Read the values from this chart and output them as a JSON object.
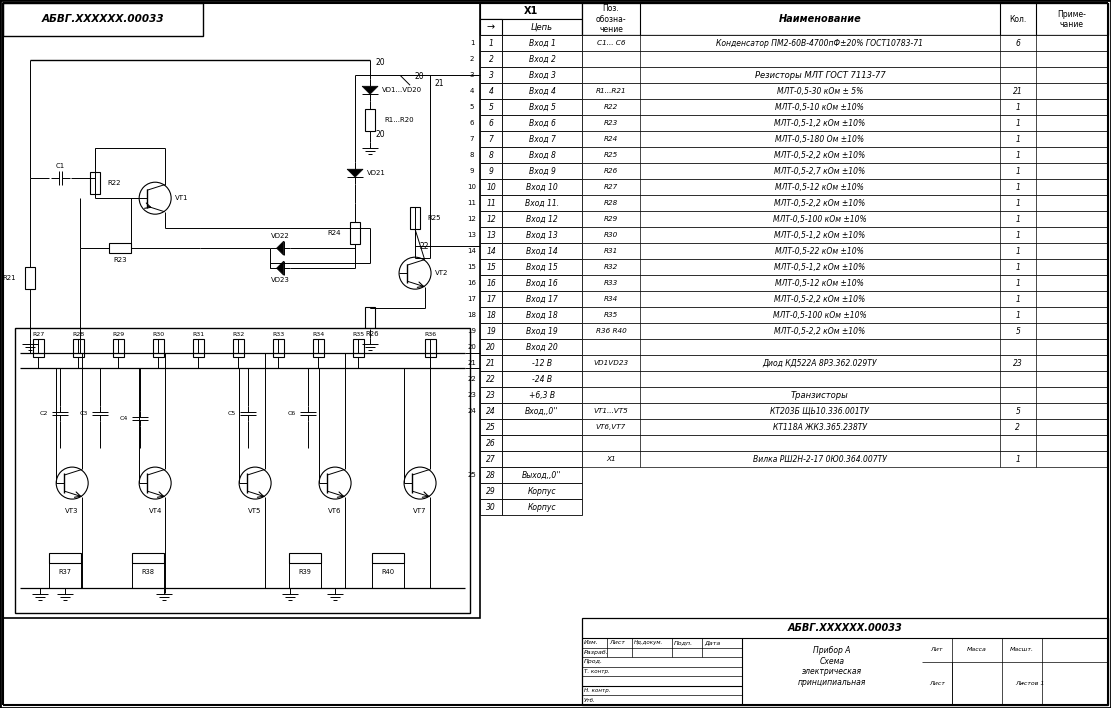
{
  "bg_color": "#ffffff",
  "fig_width": 11.11,
  "fig_height": 7.08,
  "title_stamp": "АБВГ.XXXXXX.00033",
  "bom_rows": [
    [
      "C1... C6",
      "Конденсатор ПМ2-60В-4700пФ±20% ГОСТ10783-71",
      "6"
    ],
    [
      "",
      "",
      ""
    ],
    [
      "",
      "Резисторы МЛТ ГОСТ 7113-77",
      ""
    ],
    [
      "R1...R21",
      "МЛТ-0,5-30 кОм ± 5%",
      "21"
    ],
    [
      "R22",
      "МЛТ-0,5-10 кОм ±10%",
      "1"
    ],
    [
      "R23",
      "МЛТ-0,5-1,2 кОм ±10%",
      "1"
    ],
    [
      "R24",
      "МЛТ-0,5-180 Ом ±10%",
      "1"
    ],
    [
      "R25",
      "МЛТ-0,5-2,2 кОм ±10%",
      "1"
    ],
    [
      "R26",
      "МЛТ-0,5-2,7 кОм ±10%",
      "1"
    ],
    [
      "R27",
      "МЛТ-0,5-12 кОм ±10%",
      "1"
    ],
    [
      "R28",
      "МЛТ-0,5-2,2 кОм ±10%",
      "1"
    ],
    [
      "R29",
      "МЛТ-0,5-100 кОм ±10%",
      "1"
    ],
    [
      "R30",
      "МЛТ-0,5-1,2 кОм ±10%",
      "1"
    ],
    [
      "R31",
      "МЛТ-0,5-22 кОм ±10%",
      "1"
    ],
    [
      "R32",
      "МЛТ-0,5-1,2 кОм ±10%",
      "1"
    ],
    [
      "R33",
      "МЛТ-0,5-12 кОм ±10%",
      "1"
    ],
    [
      "R34",
      "МЛТ-0,5-2,2 кОм ±10%",
      "1"
    ],
    [
      "R35",
      "МЛТ-0,5-100 кОм ±10%",
      "1"
    ],
    [
      "R36 R40",
      "МЛТ-0,5-2,2 кОм ±10%",
      "5"
    ],
    [
      "",
      "",
      ""
    ],
    [
      "VD1VD23",
      "Диод КД522А 8РЗ.362.029ТУ",
      "23"
    ],
    [
      "",
      "",
      ""
    ],
    [
      "",
      "Транзисторы",
      ""
    ],
    [
      "VT1...VT5",
      "КТ203Б ЩЬ10.336.001ТУ",
      "5"
    ],
    [
      "VT6,VT7",
      "КТ118А ЖК3.365.238ТУ",
      "2"
    ],
    [
      "",
      "",
      ""
    ],
    [
      "X1",
      "Вилка РШ2Н-2-17 0Ю0.364.007ТУ",
      "1"
    ]
  ],
  "connector_rows": [
    [
      "1",
      "Вход 1"
    ],
    [
      "2",
      "Вход 2"
    ],
    [
      "3",
      "Вход 3"
    ],
    [
      "4",
      "Вход 4"
    ],
    [
      "5",
      "Вход 5"
    ],
    [
      "6",
      "Вход 6"
    ],
    [
      "7",
      "Вход 7"
    ],
    [
      "8",
      "Вход 8"
    ],
    [
      "9",
      "Вход 9"
    ],
    [
      "10",
      "Вход 10"
    ],
    [
      "11",
      "Вход 11."
    ],
    [
      "12",
      "Вход 12"
    ],
    [
      "13",
      "Вход 13"
    ],
    [
      "14",
      "Вход 14"
    ],
    [
      "15",
      "Вход 15"
    ],
    [
      "16",
      "Вход 16"
    ],
    [
      "17",
      "Вход 17"
    ],
    [
      "18",
      "Вход 18"
    ],
    [
      "19",
      "Вход 19"
    ],
    [
      "20",
      "Вход 20"
    ],
    [
      "21",
      "-12 В"
    ],
    [
      "22",
      "-24 В"
    ],
    [
      "23",
      "+6,3 В"
    ],
    [
      "24",
      "Вход,,0''"
    ],
    [
      "25",
      ""
    ],
    [
      "26",
      ""
    ],
    [
      "27",
      ""
    ],
    [
      "28",
      "Выход,,0''"
    ],
    [
      "29",
      "Корпус"
    ],
    [
      "30",
      "Корпус"
    ]
  ],
  "ext_row_labels": {
    "0": "1",
    "1": "2",
    "2": "3",
    "3": "4",
    "4": "5",
    "5": "6",
    "6": "7",
    "7": "8",
    "8": "9",
    "9": "10",
    "10": "11",
    "11": "12",
    "12": "13",
    "13": "14",
    "14": "15",
    "15": "16",
    "16": "17",
    "17": "18",
    "18": "19",
    "19": "20",
    "20": "21",
    "21": "22",
    "22": "23",
    "23": "24",
    "27": "25"
  }
}
